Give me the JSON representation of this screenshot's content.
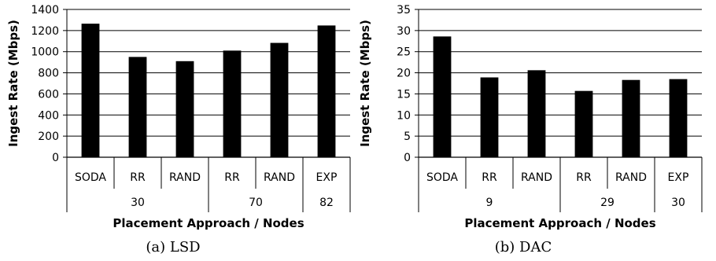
{
  "chart_data": [
    {
      "type": "bar",
      "caption": "(a) LSD",
      "ylabel": "Ingest Rate (Mbps)",
      "xlabel": "Placement Approach / Nodes",
      "ylim": [
        0,
        1400
      ],
      "yticks": [
        0,
        200,
        400,
        600,
        800,
        1000,
        1200,
        1400
      ],
      "grid": true,
      "categories": [
        "SODA",
        "RR",
        "RAND",
        "RR",
        "RAND",
        "EXP"
      ],
      "values": [
        1265,
        950,
        910,
        1010,
        1083,
        1248
      ],
      "groups": [
        {
          "label": "30",
          "count": 3
        },
        {
          "label": "70",
          "count": 2
        },
        {
          "label": "82",
          "count": 1
        }
      ],
      "bar_color": "#000000"
    },
    {
      "type": "bar",
      "caption": "(b) DAC",
      "ylabel": "Ingest Rate (Mbps)",
      "xlabel": "Placement Approach / Nodes",
      "ylim": [
        0,
        35
      ],
      "yticks": [
        0,
        5,
        10,
        15,
        20,
        25,
        30,
        35
      ],
      "grid": true,
      "categories": [
        "SODA",
        "RR",
        "RAND",
        "RR",
        "RAND",
        "EXP"
      ],
      "values": [
        28.6,
        18.9,
        20.6,
        15.7,
        18.3,
        18.5
      ],
      "groups": [
        {
          "label": "9",
          "count": 3
        },
        {
          "label": "29",
          "count": 2
        },
        {
          "label": "30",
          "count": 1
        }
      ],
      "bar_color": "#000000"
    }
  ]
}
